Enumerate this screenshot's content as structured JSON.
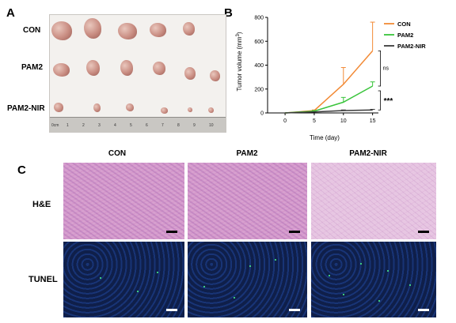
{
  "panels": {
    "a": "A",
    "b": "B",
    "c": "C"
  },
  "panel_a": {
    "rows": [
      "CON",
      "PAM2",
      "PAM2-NIR"
    ],
    "ruler_numbers": [
      "0cm",
      "1",
      "2",
      "3",
      "4",
      "5",
      "6",
      "7",
      "8",
      "9",
      "10"
    ]
  },
  "chart_data": {
    "type": "line",
    "xlabel": "Time (day)",
    "ylabel": "Tumor volume (mm",
    "ylabel_sup": "3",
    "ylabel_end": ")",
    "x": [
      0,
      5,
      10,
      15
    ],
    "xlim": [
      -3,
      16
    ],
    "ylim": [
      0,
      800
    ],
    "xticks": [
      0,
      5,
      10,
      15
    ],
    "yticks": [
      0,
      200,
      400,
      600,
      800
    ],
    "legend_position": "top-right",
    "series": [
      {
        "name": "CON",
        "color": "#f28a36",
        "values": [
          0,
          20,
          240,
          520
        ],
        "errors": [
          0,
          5,
          140,
          240
        ]
      },
      {
        "name": "PAM2",
        "color": "#39c43b",
        "values": [
          0,
          15,
          90,
          225
        ],
        "errors": [
          0,
          5,
          40,
          35
        ]
      },
      {
        "name": "PAM2-NIR",
        "color": "#3a3a3a",
        "values": [
          0,
          8,
          20,
          25
        ],
        "errors": [
          0,
          2,
          5,
          5
        ]
      }
    ],
    "annotations": [
      {
        "text": "ns",
        "between": [
          "CON",
          "PAM2"
        ]
      },
      {
        "text": "***",
        "between": [
          "PAM2",
          "PAM2-NIR"
        ]
      }
    ]
  },
  "panel_c": {
    "columns": [
      "CON",
      "PAM2",
      "PAM2-NIR"
    ],
    "rows": [
      "H&E",
      "TUNEL"
    ]
  }
}
